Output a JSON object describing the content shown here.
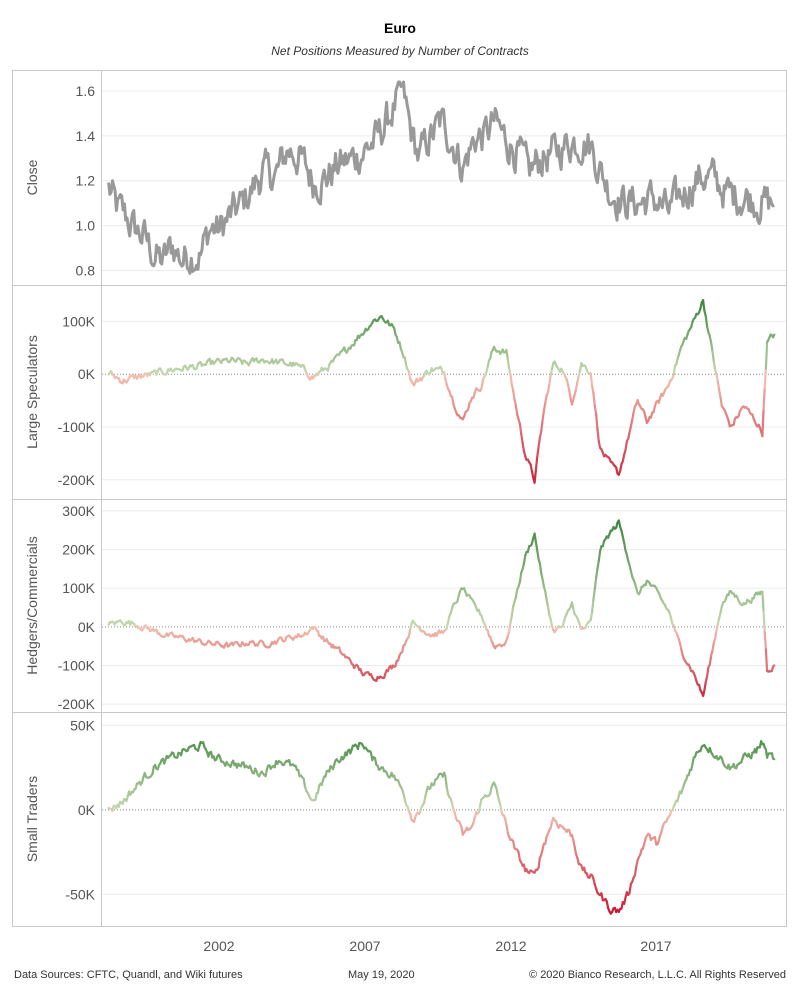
{
  "chart_data": {
    "type": "line",
    "title": "Euro",
    "subtitle": "Net Positions Measured by Number of Contracts",
    "x_ticks": [
      "2002",
      "2007",
      "2012",
      "2017"
    ],
    "panels": [
      {
        "ylabel": "Close",
        "ylim": [
          0.78,
          1.64
        ],
        "ticks": [
          0.8,
          1.0,
          1.2,
          1.4,
          1.6
        ],
        "tick_labels": [
          "0.8",
          "1.0",
          "1.2",
          "1.4",
          "1.6"
        ],
        "color_mode": "gray",
        "scale": 0.14,
        "series": {
          "x": [
            1999.05,
            1999.3,
            1999.6,
            1999.9,
            2000.2,
            2000.5,
            2000.8,
            2001.1,
            2001.4,
            2001.7,
            2002.0,
            2002.3,
            2002.6,
            2003.0,
            2003.3,
            2003.6,
            2004.0,
            2004.4,
            2004.8,
            2005.2,
            2005.6,
            2006.0,
            2006.4,
            2006.8,
            2007.2,
            2007.6,
            2008.0,
            2008.3,
            2008.5,
            2008.7,
            2009.0,
            2009.3,
            2009.7,
            2010.0,
            2010.4,
            2010.8,
            2011.1,
            2011.4,
            2011.8,
            2012.2,
            2012.5,
            2012.9,
            2013.3,
            2013.8,
            2014.2,
            2014.5,
            2014.8,
            2015.1,
            2015.5,
            2016.0,
            2016.5,
            2017.0,
            2017.5,
            2018.0,
            2018.4,
            2018.9,
            2019.4,
            2019.9,
            2020.2,
            2020.38
          ],
          "y": [
            1.17,
            1.08,
            1.04,
            0.98,
            0.95,
            0.87,
            0.84,
            0.91,
            0.85,
            0.88,
            0.87,
            0.99,
            0.98,
            1.05,
            1.09,
            1.15,
            1.24,
            1.22,
            1.34,
            1.3,
            1.2,
            1.21,
            1.27,
            1.29,
            1.33,
            1.38,
            1.47,
            1.56,
            1.58,
            1.44,
            1.3,
            1.38,
            1.46,
            1.4,
            1.26,
            1.39,
            1.4,
            1.46,
            1.38,
            1.32,
            1.23,
            1.3,
            1.32,
            1.37,
            1.38,
            1.36,
            1.25,
            1.16,
            1.11,
            1.1,
            1.12,
            1.06,
            1.15,
            1.22,
            1.21,
            1.14,
            1.13,
            1.11,
            1.1,
            1.09
          ]
        }
      },
      {
        "ylabel": "Large Speculators",
        "ylim": [
          -225,
          150
        ],
        "ticks": [
          100,
          0,
          -100,
          -200
        ],
        "tick_labels": [
          "100K",
          "0K",
          "-100K",
          "-200K"
        ],
        "color_mode": "diverging",
        "scale": 12,
        "series": {
          "x": [
            1999.05,
            1999.5,
            2000.0,
            2000.5,
            2001.0,
            2001.5,
            2002.0,
            2002.5,
            2003.0,
            2003.5,
            2004.0,
            2004.5,
            2005.0,
            2005.3,
            2005.6,
            2006.0,
            2006.4,
            2006.8,
            2007.2,
            2007.5,
            2007.8,
            2008.2,
            2008.5,
            2008.8,
            2009.0,
            2009.4,
            2009.8,
            2010.1,
            2010.4,
            2010.7,
            2011.0,
            2011.4,
            2011.8,
            2012.1,
            2012.4,
            2012.7,
            2013.0,
            2013.3,
            2013.6,
            2013.9,
            2014.2,
            2014.5,
            2014.8,
            2015.1,
            2015.4,
            2015.7,
            2016.0,
            2016.3,
            2016.6,
            2017.0,
            2017.4,
            2017.8,
            2018.1,
            2018.4,
            2018.7,
            2019.0,
            2019.4,
            2019.8,
            2020.0,
            2020.15,
            2020.38
          ],
          "y": [
            2,
            -12,
            -5,
            0,
            8,
            12,
            15,
            22,
            25,
            20,
            28,
            22,
            18,
            8,
            -5,
            10,
            30,
            55,
            80,
            100,
            110,
            85,
            40,
            -20,
            -10,
            10,
            5,
            -50,
            -90,
            -40,
            -20,
            50,
            40,
            -60,
            -150,
            -200,
            -70,
            20,
            10,
            -50,
            20,
            5,
            -140,
            -170,
            -190,
            -120,
            -50,
            -90,
            -60,
            -20,
            50,
            100,
            140,
            40,
            -60,
            -100,
            -60,
            -90,
            -110,
            60,
            75
          ]
        }
      },
      {
        "ylabel": "Hedgers/Commercials",
        "ylim": [
          -205,
          305
        ],
        "ticks": [
          300,
          200,
          100,
          0,
          -100,
          -200
        ],
        "tick_labels": [
          "300K",
          "200K",
          "100K",
          "0K",
          "-100K",
          "-200K"
        ],
        "color_mode": "diverging",
        "scale": 14,
        "series": {
          "x": [
            1999.05,
            1999.5,
            2000.0,
            2000.5,
            2001.0,
            2001.5,
            2002.0,
            2002.5,
            2003.0,
            2003.5,
            2004.0,
            2004.5,
            2005.0,
            2005.3,
            2005.6,
            2006.0,
            2006.4,
            2006.8,
            2007.2,
            2007.5,
            2007.8,
            2008.2,
            2008.5,
            2008.8,
            2009.0,
            2009.4,
            2009.8,
            2010.1,
            2010.4,
            2010.7,
            2011.0,
            2011.4,
            2011.8,
            2012.1,
            2012.4,
            2012.7,
            2013.0,
            2013.3,
            2013.6,
            2013.9,
            2014.2,
            2014.5,
            2014.8,
            2015.1,
            2015.4,
            2015.7,
            2016.0,
            2016.3,
            2016.6,
            2017.0,
            2017.4,
            2017.8,
            2018.1,
            2018.4,
            2018.7,
            2019.0,
            2019.4,
            2019.8,
            2020.0,
            2020.15,
            2020.38
          ],
          "y": [
            5,
            15,
            5,
            -10,
            -25,
            -30,
            -40,
            -45,
            -50,
            -40,
            -45,
            -35,
            -25,
            -20,
            0,
            -35,
            -60,
            -90,
            -120,
            -130,
            -125,
            -100,
            -50,
            10,
            0,
            -20,
            -15,
            50,
            100,
            60,
            30,
            -50,
            -40,
            80,
            180,
            240,
            100,
            -10,
            0,
            60,
            -10,
            10,
            200,
            240,
            270,
            180,
            80,
            120,
            90,
            40,
            -60,
            -120,
            -180,
            -60,
            60,
            90,
            60,
            80,
            90,
            -110,
            -100
          ]
        }
      },
      {
        "ylabel": "Small Traders",
        "ylim": [
          -64,
          52
        ],
        "ticks": [
          50,
          0,
          -50
        ],
        "tick_labels": [
          "50K",
          "0K",
          "-50K"
        ],
        "color_mode": "diverging",
        "scale": 4.5,
        "series": {
          "x": [
            1999.05,
            1999.5,
            2000.0,
            2000.5,
            2001.0,
            2001.5,
            2002.0,
            2002.5,
            2003.0,
            2003.5,
            2004.0,
            2004.5,
            2005.0,
            2005.3,
            2005.6,
            2006.0,
            2006.4,
            2006.8,
            2007.2,
            2007.5,
            2007.8,
            2008.2,
            2008.5,
            2008.8,
            2009.0,
            2009.4,
            2009.8,
            2010.1,
            2010.4,
            2010.7,
            2011.0,
            2011.4,
            2011.8,
            2012.1,
            2012.4,
            2012.7,
            2013.0,
            2013.3,
            2013.6,
            2013.9,
            2014.2,
            2014.5,
            2014.8,
            2015.1,
            2015.4,
            2015.7,
            2016.0,
            2016.3,
            2016.6,
            2017.0,
            2017.4,
            2017.8,
            2018.1,
            2018.4,
            2018.7,
            2019.0,
            2019.4,
            2019.8,
            2020.0,
            2020.15,
            2020.38
          ],
          "y": [
            0,
            5,
            15,
            25,
            30,
            35,
            38,
            30,
            28,
            25,
            22,
            30,
            25,
            15,
            5,
            20,
            30,
            35,
            40,
            30,
            25,
            20,
            10,
            -5,
            0,
            15,
            20,
            0,
            -15,
            -10,
            5,
            15,
            -10,
            -25,
            -35,
            -40,
            -20,
            -5,
            -10,
            -15,
            -35,
            -40,
            -50,
            -58,
            -60,
            -50,
            -30,
            -15,
            -20,
            -5,
            10,
            30,
            40,
            35,
            30,
            25,
            30,
            35,
            40,
            32,
            30
          ]
        }
      }
    ]
  },
  "footer": {
    "sources": "Data Sources: CFTC, Quandl, and Wiki futures",
    "date": "May 19, 2020",
    "copyright": "© 2020 Bianco Research, L.L.C. All Rights Reserved"
  }
}
